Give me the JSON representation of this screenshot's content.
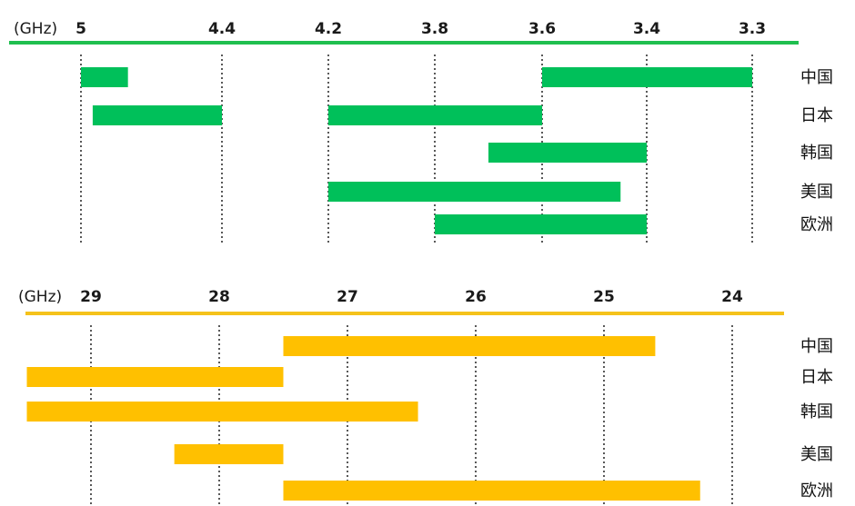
{
  "chart_data": [
    {
      "type": "bar",
      "orientation": "horizontal-range",
      "x_direction": "reversed",
      "color": "#00c05a",
      "axis_color": "#1fbf4f",
      "unit_label": "(GHz)",
      "ticks": [
        {
          "label": "5",
          "value": 5.0
        },
        {
          "label": "4.4",
          "value": 4.4
        },
        {
          "label": "4.2",
          "value": 4.2
        },
        {
          "label": "3.8",
          "value": 3.8
        },
        {
          "label": "3.6",
          "value": 3.6
        },
        {
          "label": "3.4",
          "value": 3.4
        },
        {
          "label": "3.3",
          "value": 3.3
        }
      ],
      "categories": [
        "中国",
        "日本",
        "韩国",
        "美国",
        "欧洲"
      ],
      "ranges": [
        [
          [
            4.8,
            5.0
          ],
          [
            3.3,
            3.6
          ]
        ],
        [
          [
            4.4,
            4.95
          ],
          [
            3.6,
            4.2
          ]
        ],
        [
          [
            3.4,
            3.7
          ]
        ],
        [
          [
            3.7,
            4.2
          ],
          [
            3.45,
            3.7
          ]
        ],
        [
          [
            3.4,
            3.8
          ]
        ]
      ]
    },
    {
      "type": "bar",
      "orientation": "horizontal-range",
      "x_direction": "reversed",
      "color": "#ffc000",
      "axis_color": "#f5c21b",
      "unit_label": "(GHz)",
      "ticks": [
        {
          "label": "29",
          "value": 29
        },
        {
          "label": "28",
          "value": 28
        },
        {
          "label": "27",
          "value": 27
        },
        {
          "label": "26",
          "value": 26
        },
        {
          "label": "25",
          "value": 25
        },
        {
          "label": "24",
          "value": 24
        }
      ],
      "categories": [
        "中国",
        "日本",
        "韩国",
        "美国",
        "欧洲"
      ],
      "ranges": [
        [
          [
            24.6,
            27.5
          ]
        ],
        [
          [
            27.5,
            29.5
          ]
        ],
        [
          [
            26.45,
            29.5
          ]
        ],
        [
          [
            27.5,
            28.35
          ]
        ],
        [
          [
            24.25,
            27.5
          ]
        ]
      ]
    }
  ]
}
